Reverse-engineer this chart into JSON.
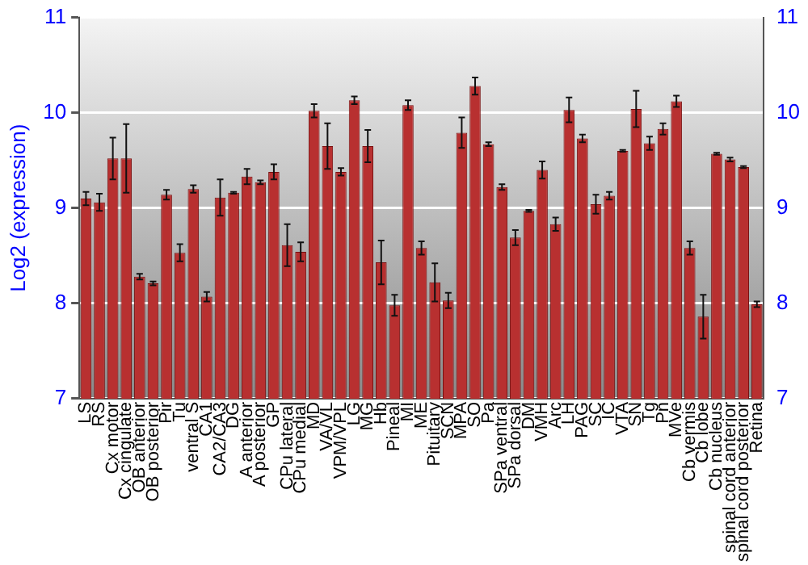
{
  "chart_data": {
    "type": "bar",
    "ylabel": "Log2 (expression)",
    "categories": [
      "LS",
      "RS",
      "Cx motor",
      "Cx cingulate",
      "OB anterior",
      "OB posterior",
      "Pir",
      "Tu",
      "ventral S",
      "CA1",
      "CA2/CA3",
      "DG",
      "A anterior",
      "A posterior",
      "GP",
      "CPu lateral",
      "CPu medial",
      "MD",
      "VA/VL",
      "VPM/VPL",
      "LG",
      "MG",
      "Hb",
      "Pineal",
      "MI",
      "ME",
      "Pituitary",
      "SCN",
      "MPA",
      "SO",
      "Pa",
      "SPa ventral",
      "SPa dorsal",
      "DM",
      "VMH",
      "Arc",
      "LH",
      "PAG",
      "SC",
      "IC",
      "VTA",
      "SN",
      "Tg",
      "Pn",
      "MVe",
      "Cb vermis",
      "Cb lobe",
      "Cb nucleus",
      "spinal cord anterior",
      "spinal cord posterior",
      "Retina"
    ],
    "values": [
      9.1,
      9.06,
      9.52,
      9.52,
      8.28,
      8.21,
      9.14,
      8.53,
      9.2,
      8.07,
      9.11,
      9.16,
      9.33,
      9.27,
      9.38,
      8.61,
      8.54,
      10.02,
      9.65,
      9.38,
      10.13,
      9.65,
      8.43,
      7.98,
      10.08,
      8.58,
      8.22,
      8.03,
      9.79,
      10.28,
      9.67,
      9.22,
      8.69,
      8.97,
      9.4,
      8.83,
      10.03,
      9.73,
      9.04,
      9.13,
      9.6,
      10.04,
      9.68,
      9.83,
      10.12,
      8.58,
      7.86,
      9.57,
      9.51,
      9.43,
      7.99
    ],
    "errors": [
      0.07,
      0.09,
      0.22,
      0.36,
      0.03,
      0.02,
      0.05,
      0.09,
      0.04,
      0.05,
      0.19,
      0.01,
      0.08,
      0.02,
      0.08,
      0.22,
      0.1,
      0.07,
      0.24,
      0.04,
      0.04,
      0.17,
      0.23,
      0.11,
      0.05,
      0.07,
      0.2,
      0.08,
      0.16,
      0.09,
      0.02,
      0.03,
      0.08,
      0.01,
      0.09,
      0.07,
      0.13,
      0.04,
      0.1,
      0.04,
      0.01,
      0.19,
      0.07,
      0.06,
      0.06,
      0.07,
      0.23,
      0.01,
      0.02,
      0.01,
      0.03
    ],
    "color": "#b83030",
    "ylim": [
      7,
      11
    ],
    "yticks": [
      7,
      8,
      9,
      10,
      11
    ],
    "y2lim": [
      7,
      11
    ],
    "y2ticks": [
      7,
      8,
      9,
      10,
      11
    ],
    "grid": "y",
    "legend": false
  }
}
